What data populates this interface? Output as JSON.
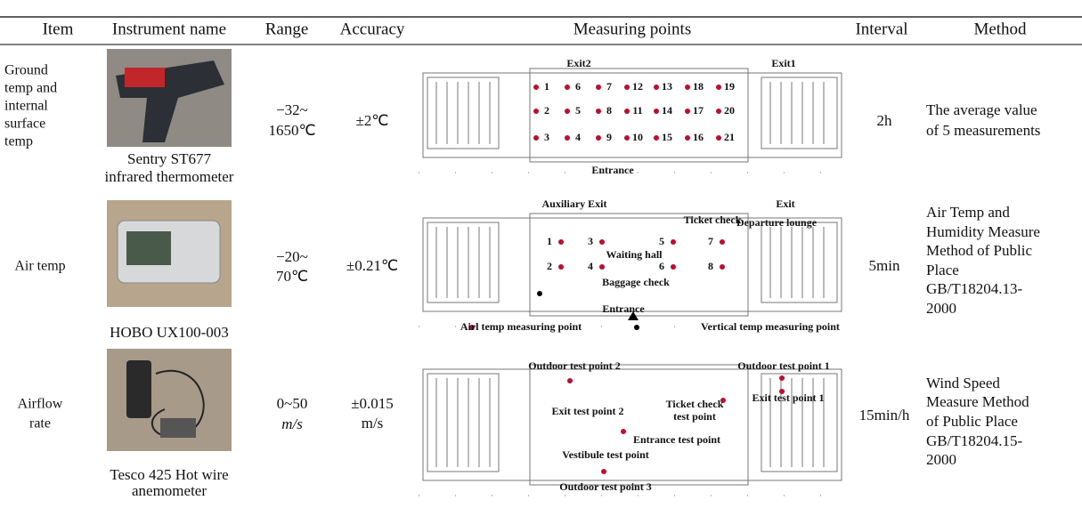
{
  "header": {
    "cells": [
      "Item",
      "Instrument name",
      "Range",
      "Accuracy",
      "Measuring points",
      "Interval",
      "Method"
    ]
  },
  "table": {
    "rows": [
      {
        "item": [
          "Ground",
          "temp and",
          "internal",
          "surface",
          "temp"
        ],
        "instrument": [
          "Sentry ST677",
          "infrared thermometer"
        ],
        "range": [
          "−32~",
          "1650℃"
        ],
        "accuracy": [
          "±2℃"
        ],
        "plan": [
          "Exit2",
          "Exit1",
          "Entrance",
          "1",
          "2",
          "3",
          "4",
          "5",
          "6",
          "7",
          "8",
          "9",
          "10",
          "11",
          "12",
          "13",
          "14",
          "15",
          "16",
          "17",
          "18",
          "19",
          "20",
          "21"
        ],
        "interval": "2h",
        "method": [
          "The average value",
          "of 5 measurements"
        ]
      },
      {
        "item": [
          "Air temp"
        ],
        "instrument": [
          "HOBO UX100-003"
        ],
        "range": [
          "−20~",
          "70℃"
        ],
        "accuracy": [
          "±0.21℃"
        ],
        "plan": [
          "Auxiliary Exit",
          "Exit",
          "Ticket check",
          "Departure lounge",
          "Waiting hall",
          "Baggage check",
          "Entrance",
          "1",
          "2",
          "3",
          "4",
          "5",
          "6",
          "7",
          "8",
          "Airl temp measuring point",
          "Vertical temp measuring point"
        ],
        "interval": "5min",
        "method": [
          "Air Temp and",
          "Humidity Measure",
          "Method of Public",
          "Place",
          "GB/T18204.13-",
          "2000"
        ]
      },
      {
        "item": [
          "Airflow",
          "rate"
        ],
        "instrument": [
          "Tesco 425 Hot wire",
          "anemometer"
        ],
        "range": [
          "0~50",
          "m/s"
        ],
        "accuracy": [
          "±0.015",
          "m/s"
        ],
        "plan": [
          "Outdoor test point 2",
          "Outdoor test point 1",
          "Exit test point 2",
          "Ticket check",
          "test point",
          "Exit test point 1",
          "Entrance test point",
          "Vestibule test point",
          "Outdoor test point 3"
        ],
        "interval": "15min/h",
        "method": [
          "Wind Speed",
          "Measure Method",
          "of Public Place",
          "GB/T18204.15-",
          "2000"
        ]
      }
    ]
  }
}
